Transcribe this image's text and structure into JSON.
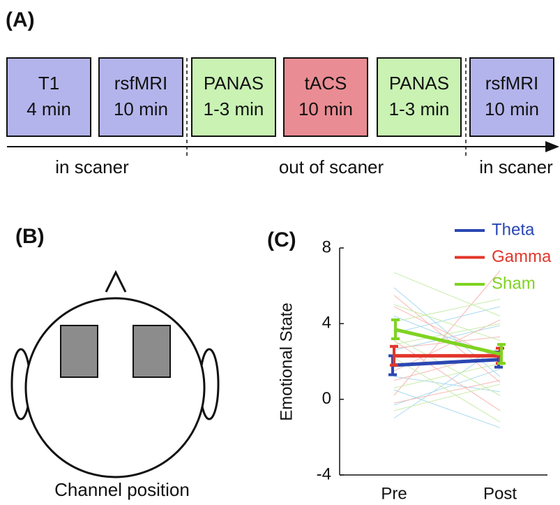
{
  "panel_a": {
    "label": "(A)",
    "steps": [
      {
        "name": "T1",
        "duration": "4 min",
        "color": "#b4b4ec"
      },
      {
        "name": "rsfMRI",
        "duration": "10 min",
        "color": "#b4b4ec"
      },
      {
        "name": "PANAS",
        "duration": "1-3 min",
        "color": "#c9f2b3"
      },
      {
        "name": "tACS",
        "duration": "10 min",
        "color": "#ea8c93"
      },
      {
        "name": "PANAS",
        "duration": "1-3 min",
        "color": "#c9f2b3"
      },
      {
        "name": "rsfMRI",
        "duration": "10 min",
        "color": "#b4b4ec"
      }
    ],
    "phases": [
      "in scaner",
      "out of scaner",
      "in scaner"
    ]
  },
  "panel_b": {
    "label": "(B)",
    "caption": "Channel position"
  },
  "chart_data": {
    "type": "line",
    "panel_label": "(C)",
    "y_label": "Emotional State",
    "categories": [
      "Pre",
      "Post"
    ],
    "ylim": [
      -4,
      8
    ],
    "yticks": [
      -4,
      0,
      4,
      8
    ],
    "series": [
      {
        "name": "Theta",
        "color": "#2a47b2",
        "light": "#a9d9ee",
        "values": [
          1.8,
          2.1
        ],
        "errors": [
          0.5,
          0.4
        ],
        "individual": [
          [
            5.9,
            1.2
          ],
          [
            3.5,
            4.9
          ],
          [
            -1.0,
            2.8
          ],
          [
            0.5,
            -1.5
          ],
          [
            2.6,
            3.9
          ],
          [
            1.2,
            0.4
          ],
          [
            4.4,
            2.2
          ],
          [
            -0.3,
            1.6
          ]
        ]
      },
      {
        "name": "Gamma",
        "color": "#e2362b",
        "light": "#f6b8b3",
        "values": [
          2.3,
          2.3
        ],
        "errors": [
          0.5,
          0.4
        ],
        "individual": [
          [
            0.2,
            6.8
          ],
          [
            4.9,
            2.1
          ],
          [
            1.5,
            4.2
          ],
          [
            3.1,
            -0.6
          ],
          [
            -0.2,
            1.0
          ],
          [
            2.7,
            3.3
          ],
          [
            5.5,
            0.9
          ],
          [
            1.0,
            2.5
          ]
        ]
      },
      {
        "name": "Sham",
        "color": "#7fd321",
        "light": "#c8ecaa",
        "values": [
          3.7,
          2.4
        ],
        "errors": [
          0.5,
          0.5
        ],
        "individual": [
          [
            6.7,
            4.4
          ],
          [
            2.2,
            -1.2
          ],
          [
            4.1,
            5.3
          ],
          [
            0.6,
            1.9
          ],
          [
            3.3,
            0.2
          ],
          [
            5.0,
            3.1
          ],
          [
            -0.6,
            0.8
          ],
          [
            2.9,
            4.0
          ]
        ]
      }
    ]
  }
}
